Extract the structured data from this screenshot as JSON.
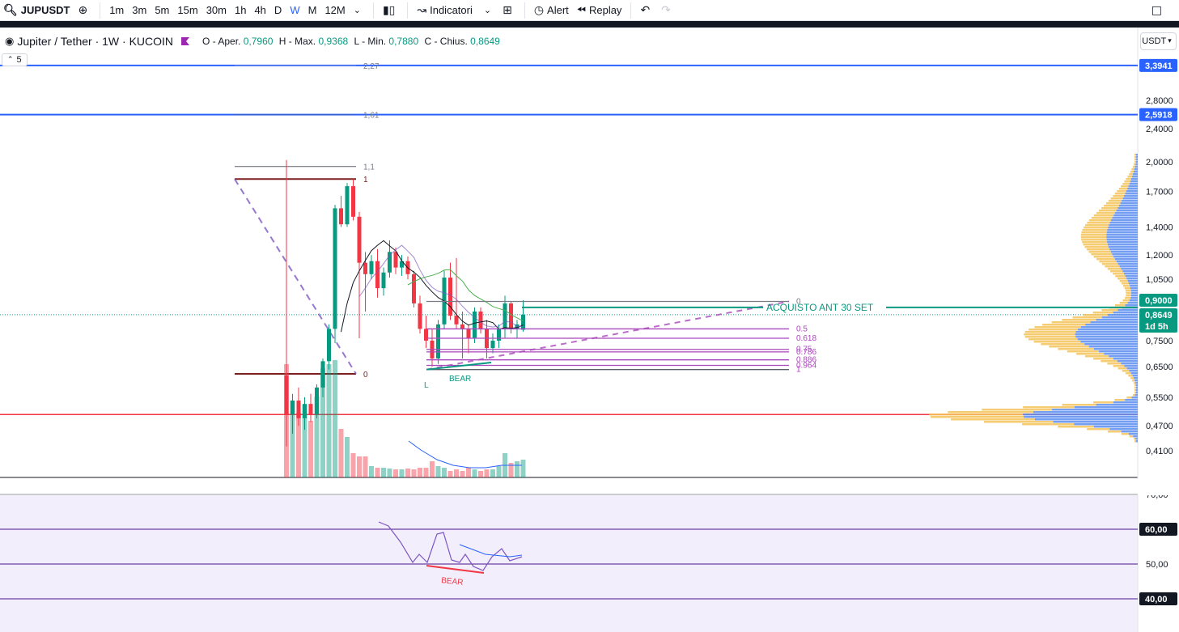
{
  "toolbar": {
    "symbol": "JUPUSDT",
    "intervals": [
      "1m",
      "3m",
      "5m",
      "15m",
      "30m",
      "1h",
      "4h",
      "D",
      "W",
      "M",
      "12M"
    ],
    "active_interval": "W",
    "indicators_label": "Indicatori",
    "alert_label": "Alert",
    "replay_label": "Replay"
  },
  "legend": {
    "title": "Jupiter / Tether · 1W · KUCOIN",
    "o_label": "O - Aper.",
    "o_value": "0,7960",
    "h_label": "H - Max.",
    "h_value": "0,9368",
    "l_label": "L - Min.",
    "l_value": "0,7880",
    "c_label": "C - Chius.",
    "c_value": "0,8649",
    "collapse_count": "5"
  },
  "currency": "USDT",
  "colors": {
    "up": "#089981",
    "down": "#f23645",
    "accent": "#2962ff",
    "fib": "#ab47bc",
    "rsi_bg": "#f3eefb",
    "profile_buy": "#5b8def",
    "profile_sell": "#f5c35b"
  },
  "price_axis": {
    "labels": [
      "2,8000",
      "2,4000",
      "2,0000",
      "1,7000",
      "1,4000",
      "1,2000",
      "1,0500",
      "0,7500",
      "0,6500",
      "0,5500",
      "0,4700",
      "0,4100"
    ],
    "tags": [
      {
        "text": "3,3941",
        "color": "#2962ff"
      },
      {
        "text": "2,5918",
        "color": "#2962ff"
      },
      {
        "text": "0,9000",
        "color": "#089981"
      },
      {
        "text": "0,8649",
        "color": "#089981"
      },
      {
        "text": "1d 5h",
        "color": "#089981"
      }
    ]
  },
  "rsi_axis": {
    "labels": [
      "70,00",
      "50,00"
    ],
    "tags": [
      "60,00",
      "40,00"
    ]
  },
  "annotations": {
    "buy_label": "ACQUISTO ANT 30 SET",
    "bear_label": "BEAR",
    "rsi_bear_label": "BEAR",
    "low_label": "L"
  },
  "fib_levels_top": [
    "2,27",
    "1,61",
    "1,1",
    "1",
    "0"
  ],
  "fib_levels_right": [
    "0",
    "0.5",
    "0.618",
    "0.75",
    "0.786",
    "0.886",
    "0.964",
    "1"
  ],
  "candles": [
    {
      "o": 0.62,
      "h": 2.02,
      "l": 0.42,
      "c": 0.5
    },
    {
      "o": 0.5,
      "h": 0.56,
      "l": 0.45,
      "c": 0.54
    },
    {
      "o": 0.54,
      "h": 0.58,
      "l": 0.47,
      "c": 0.49
    },
    {
      "o": 0.49,
      "h": 0.55,
      "l": 0.46,
      "c": 0.53
    },
    {
      "o": 0.53,
      "h": 0.56,
      "l": 0.48,
      "c": 0.5
    },
    {
      "o": 0.5,
      "h": 0.59,
      "l": 0.49,
      "c": 0.58
    },
    {
      "o": 0.58,
      "h": 0.68,
      "l": 0.55,
      "c": 0.67
    },
    {
      "o": 0.67,
      "h": 0.82,
      "l": 0.64,
      "c": 0.8
    },
    {
      "o": 0.8,
      "h": 1.58,
      "l": 0.74,
      "c": 1.55
    },
    {
      "o": 1.55,
      "h": 1.66,
      "l": 1.4,
      "c": 1.42
    },
    {
      "o": 1.42,
      "h": 1.78,
      "l": 1.4,
      "c": 1.75
    },
    {
      "o": 1.75,
      "h": 1.82,
      "l": 1.45,
      "c": 1.48
    },
    {
      "o": 1.48,
      "h": 1.52,
      "l": 0.76,
      "c": 1.15
    },
    {
      "o": 1.15,
      "h": 1.22,
      "l": 0.88,
      "c": 1.08
    },
    {
      "o": 1.08,
      "h": 1.2,
      "l": 1.05,
      "c": 1.16
    },
    {
      "o": 1.16,
      "h": 1.24,
      "l": 0.95,
      "c": 1.0
    },
    {
      "o": 1.0,
      "h": 1.12,
      "l": 0.96,
      "c": 1.09
    },
    {
      "o": 1.09,
      "h": 1.3,
      "l": 1.06,
      "c": 1.22
    },
    {
      "o": 1.22,
      "h": 1.25,
      "l": 1.08,
      "c": 1.12
    },
    {
      "o": 1.12,
      "h": 1.2,
      "l": 1.07,
      "c": 1.16
    },
    {
      "o": 1.16,
      "h": 1.19,
      "l": 1.05,
      "c": 1.08
    },
    {
      "o": 1.08,
      "h": 1.1,
      "l": 0.9,
      "c": 0.92
    },
    {
      "o": 0.92,
      "h": 0.96,
      "l": 0.78,
      "c": 0.8
    },
    {
      "o": 0.8,
      "h": 0.86,
      "l": 0.72,
      "c": 0.75
    },
    {
      "o": 0.75,
      "h": 0.8,
      "l": 0.65,
      "c": 0.68
    },
    {
      "o": 0.68,
      "h": 0.84,
      "l": 0.66,
      "c": 0.82
    },
    {
      "o": 0.82,
      "h": 1.1,
      "l": 0.8,
      "c": 1.06
    },
    {
      "o": 1.06,
      "h": 1.15,
      "l": 0.84,
      "c": 0.86
    },
    {
      "o": 0.86,
      "h": 1.18,
      "l": 0.8,
      "c": 0.82
    },
    {
      "o": 0.82,
      "h": 0.88,
      "l": 0.68,
      "c": 0.8
    },
    {
      "o": 0.8,
      "h": 0.82,
      "l": 0.7,
      "c": 0.76
    },
    {
      "o": 0.76,
      "h": 0.9,
      "l": 0.74,
      "c": 0.88
    },
    {
      "o": 0.88,
      "h": 0.9,
      "l": 0.78,
      "c": 0.8
    },
    {
      "o": 0.8,
      "h": 0.84,
      "l": 0.68,
      "c": 0.72
    },
    {
      "o": 0.72,
      "h": 0.78,
      "l": 0.7,
      "c": 0.75
    },
    {
      "o": 0.75,
      "h": 0.82,
      "l": 0.72,
      "c": 0.8
    },
    {
      "o": 0.8,
      "h": 0.96,
      "l": 0.76,
      "c": 0.92
    },
    {
      "o": 0.92,
      "h": 0.93,
      "l": 0.78,
      "c": 0.8
    },
    {
      "o": 0.8,
      "h": 0.84,
      "l": 0.76,
      "c": 0.82
    },
    {
      "o": 0.796,
      "h": 0.9368,
      "l": 0.788,
      "c": 0.8649
    }
  ]
}
